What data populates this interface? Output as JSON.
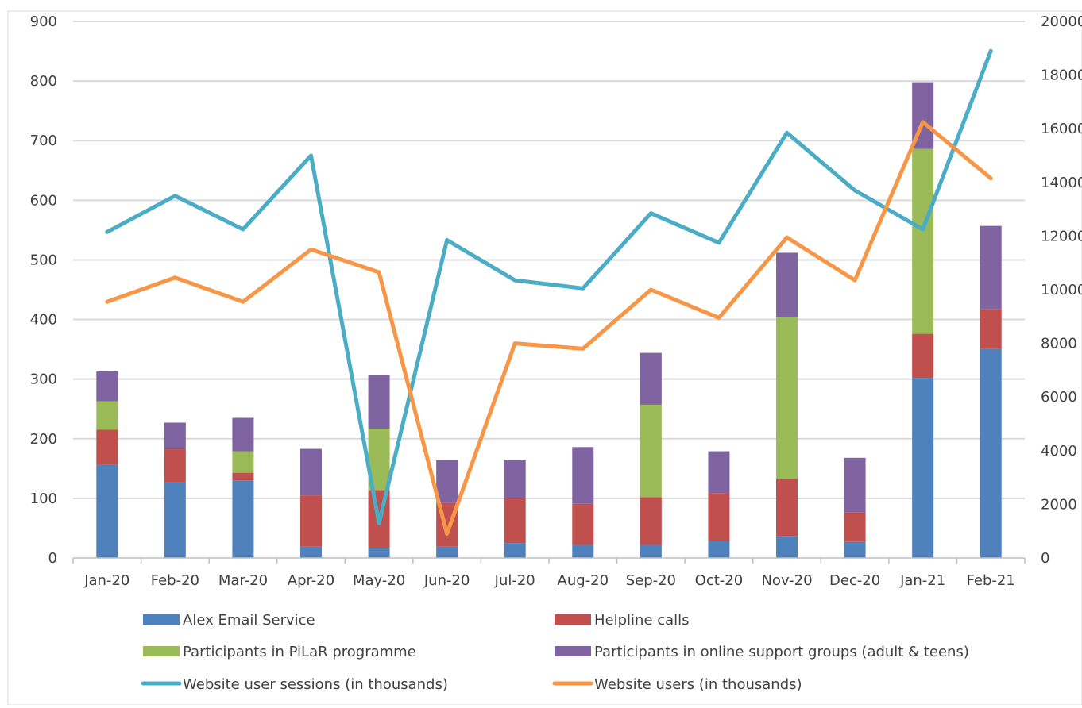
{
  "chart_data": {
    "type": "bar",
    "stacked": true,
    "categories": [
      "Jan-20",
      "Feb-20",
      "Mar-20",
      "Apr-20",
      "May-20",
      "Jun-20",
      "Jul-20",
      "Aug-20",
      "Sep-20",
      "Oct-20",
      "Nov-20",
      "Dec-20",
      "Jan-21",
      "Feb-21"
    ],
    "series": [
      {
        "name": "Alex Email Service",
        "kind": "bar",
        "axis": "left",
        "color": "#4F81BD",
        "values": [
          157,
          127,
          130,
          19,
          17,
          19,
          25,
          22,
          22,
          28,
          37,
          27,
          302,
          351
        ]
      },
      {
        "name": "Helpline calls",
        "kind": "bar",
        "axis": "left",
        "color": "#C0504D",
        "values": [
          58,
          57,
          13,
          86,
          97,
          73,
          76,
          69,
          80,
          81,
          96,
          50,
          74,
          66
        ]
      },
      {
        "name": "Participants in PiLaR programme",
        "kind": "bar",
        "axis": "left",
        "color": "#9BBB59",
        "values": [
          48,
          0,
          36,
          0,
          103,
          0,
          0,
          0,
          155,
          0,
          271,
          0,
          310,
          0
        ]
      },
      {
        "name": "Participants in online support groups (adult & teens)",
        "kind": "bar",
        "axis": "left",
        "color": "#8064A2",
        "values": [
          50,
          43,
          56,
          78,
          90,
          72,
          64,
          95,
          87,
          70,
          108,
          91,
          112,
          140
        ]
      },
      {
        "name": "Website user sessions (in thousands)",
        "kind": "line",
        "axis": "right",
        "color": "#4BACC6",
        "values": [
          12150,
          13500,
          12250,
          15000,
          1300,
          11850,
          10350,
          10050,
          12850,
          11750,
          15850,
          13700,
          12250,
          18900
        ]
      },
      {
        "name": "Website users (in thousands)",
        "kind": "line",
        "axis": "right",
        "color": "#F79646",
        "values": [
          9550,
          10450,
          9550,
          11500,
          10650,
          900,
          8000,
          7800,
          10000,
          8950,
          11950,
          10350,
          16250,
          14150
        ]
      }
    ],
    "y_left": {
      "min": 0,
      "max": 900,
      "ticks": [
        0,
        100,
        200,
        300,
        400,
        500,
        600,
        700,
        800,
        900
      ]
    },
    "y_right": {
      "min": 0,
      "max": 20000,
      "ticks": [
        0,
        2000,
        4000,
        6000,
        8000,
        10000,
        12000,
        14000,
        16000,
        18000,
        20000
      ]
    },
    "title": "",
    "xlabel": "",
    "ylabel": "",
    "grid": true,
    "legend_position": "bottom"
  }
}
